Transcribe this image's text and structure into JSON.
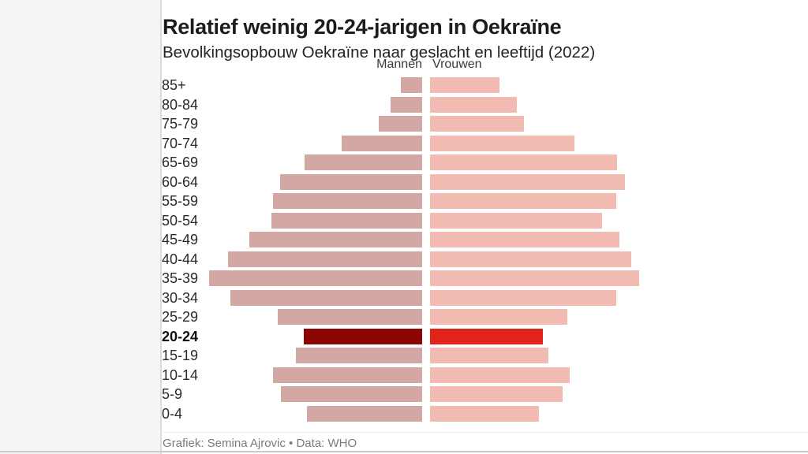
{
  "header": {
    "title": "Relatief weinig 20-24-jarigen in Oekraïne",
    "subtitle": "Bevolkingsopbouw Oekraïne naar geslacht en leeftijd (2022)"
  },
  "columns": {
    "men": "Mannen",
    "women": "Vrouwen"
  },
  "chart_data": {
    "type": "bar",
    "variant": "population-pyramid-horizontal",
    "title": "Relatief weinig 20-24-jarigen in Oekraïne",
    "subtitle": "Bevolkingsopbouw Oekraïne naar geslacht en leeftijd (2022)",
    "categories": [
      "85+",
      "80-84",
      "75-79",
      "70-74",
      "65-69",
      "60-64",
      "55-59",
      "50-54",
      "45-49",
      "40-44",
      "35-39",
      "30-34",
      "25-29",
      "20-24",
      "15-19",
      "10-14",
      "5-9",
      "0-4"
    ],
    "categories_order": "oldest at top, youngest at bottom",
    "series": [
      {
        "name": "Mannen",
        "side": "left",
        "values": [
          10.0,
          14.8,
          20.4,
          37.8,
          55.2,
          66.7,
          70.0,
          70.7,
          81.1,
          91.1,
          100.0,
          90.0,
          67.8,
          55.6,
          59.3,
          70.0,
          66.3,
          54.1
        ]
      },
      {
        "name": "Vrouwen",
        "side": "right",
        "values": [
          32.6,
          40.7,
          44.1,
          67.8,
          87.8,
          91.5,
          87.4,
          80.7,
          88.9,
          94.4,
          98.1,
          87.4,
          64.4,
          53.0,
          55.6,
          65.6,
          62.2,
          51.1
        ]
      }
    ],
    "values_unit": "relative cohort size, % of largest cohort (no numeric axis shown in chart)",
    "highlight_category": "20-24",
    "highlight_index": 13,
    "grid": false,
    "numeric_axis_visible": false,
    "legend_position": "column headers above center spine",
    "colors": {
      "men_bar": "#d2a7a4",
      "women_bar": "#f2bcb3",
      "men_highlight": "#8b0603",
      "women_highlight": "#e2231a"
    }
  },
  "footer": {
    "credit": "Grafiek: Semina Ajrovic • Data: WHO"
  }
}
